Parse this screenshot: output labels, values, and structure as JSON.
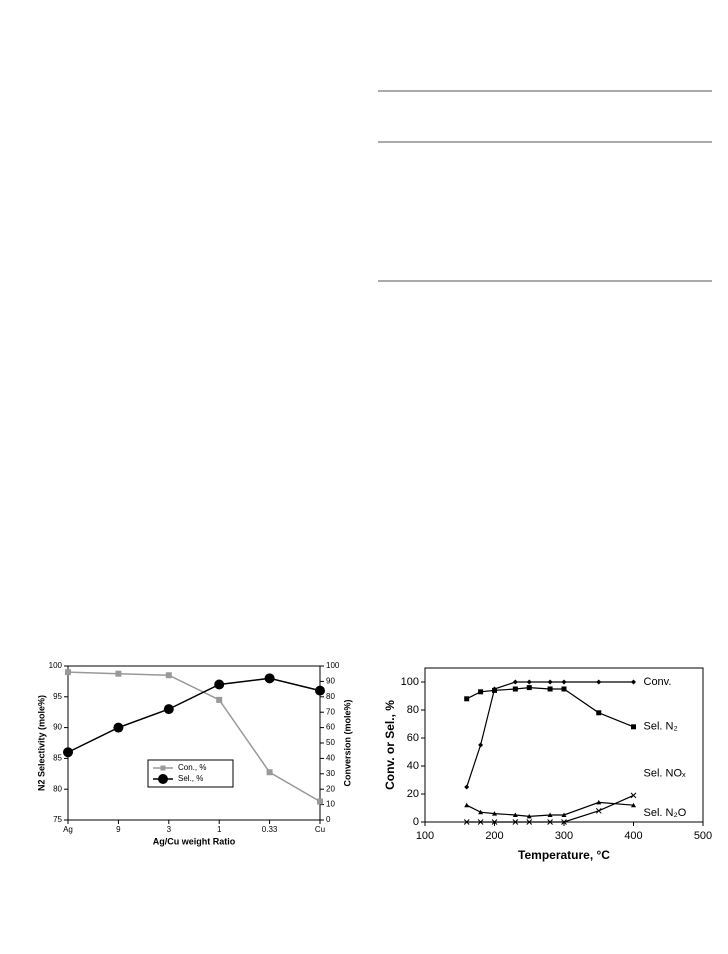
{
  "chart_data": [
    {
      "type": "line",
      "xlabel": "Ag/Cu weight Ratio",
      "ylabel": "N2 Selectivity (mole%)",
      "y2label": "Conversion (mole%)",
      "categories": [
        "Ag",
        "9",
        "3",
        "1",
        "0.33",
        "Cu"
      ],
      "series": [
        {
          "name": "Con., %",
          "color": "#999999",
          "marker": "square",
          "axis": "y2",
          "values": [
            96,
            95,
            94,
            78,
            31,
            12
          ]
        },
        {
          "name": "Sel., %",
          "color": "#000000",
          "marker": "circle",
          "values": [
            86,
            90,
            93,
            97,
            98,
            96
          ]
        }
      ],
      "ylim": [
        75,
        100
      ],
      "yticks": [
        75,
        80,
        85,
        90,
        95,
        100
      ],
      "y2lim": [
        0,
        100
      ],
      "y2ticks": [
        0,
        10,
        20,
        30,
        40,
        50,
        60,
        70,
        80,
        90,
        100
      ],
      "legend": "center"
    },
    {
      "type": "line",
      "xlabel": "Temperature, °C",
      "ylabel": "Conv. or Sel., %",
      "x": [
        160,
        180,
        200,
        230,
        250,
        280,
        300,
        350,
        400
      ],
      "series": [
        {
          "name": "Conv.",
          "color": "#000000",
          "marker": "diamond",
          "values": [
            25,
            55,
            95,
            100,
            100,
            100,
            100,
            100,
            100
          ]
        },
        {
          "name": "Sel. N₂",
          "color": "#000000",
          "marker": "square",
          "values": [
            88,
            93,
            94,
            95,
            96,
            95,
            95,
            78,
            68
          ]
        },
        {
          "name": "Sel. NOₓ",
          "color": "#000000",
          "marker": "x",
          "values": [
            0,
            0,
            0,
            0,
            0,
            0,
            0,
            8,
            19
          ]
        },
        {
          "name": "Sel. N₂O",
          "color": "#000000",
          "marker": "triangle",
          "values": [
            12,
            7,
            6,
            5,
            4,
            5,
            5,
            14,
            12
          ]
        }
      ],
      "xlim": [
        100,
        500
      ],
      "xticks": [
        100,
        200,
        300,
        400,
        500
      ],
      "ylim": [
        0,
        110
      ],
      "yticks": [
        0,
        20,
        40,
        60,
        80,
        100
      ]
    }
  ]
}
